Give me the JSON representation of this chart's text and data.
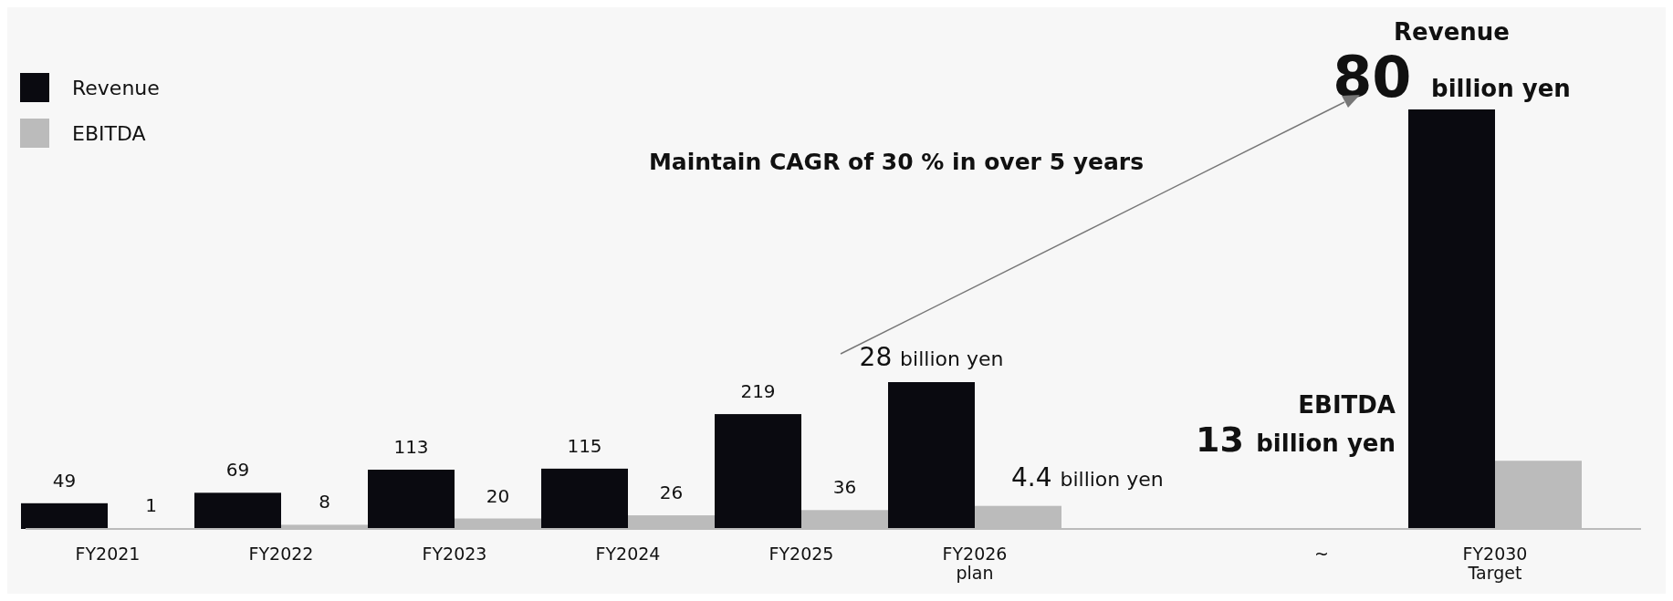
{
  "chart_data": {
    "type": "bar",
    "categories": [
      "FY2021",
      "FY2022",
      "FY2023",
      "FY2024",
      "FY2025",
      "FY2026\nplan",
      null,
      "~",
      "FY2030\nTarget"
    ],
    "series": [
      {
        "name": "Revenue",
        "color": "#0a0a10",
        "values": [
          49,
          69,
          113,
          115,
          219,
          280,
          null,
          null,
          800
        ],
        "value_labels": [
          "49",
          "69",
          "113",
          "115",
          "219",
          null,
          null,
          null,
          null
        ]
      },
      {
        "name": "EBITDA",
        "color": "#bbbbbb",
        "values": [
          1,
          8,
          20,
          26,
          36,
          44,
          null,
          null,
          130
        ],
        "value_labels": [
          "1",
          "8",
          "20",
          "26",
          "36",
          null,
          null,
          null,
          null
        ]
      }
    ],
    "legend": "top left",
    "annotations": [
      "Maintain CAGR of 30 % in over 5 years",
      {
        "text": "28 billion yen",
        "x": "FY2026\nplan",
        "y": 280
      },
      {
        "text": "4.4 billion yen",
        "x": "FY2026\nplan",
        "y": 44
      },
      {
        "text": "80 billion yen",
        "x": "FY2030\nTarget",
        "y": 800
      },
      "Revenue",
      {
        "text": "13 billion yen",
        "x": "FY2030\nTarget",
        "y": 130
      },
      "EBITDA"
    ]
  }
}
